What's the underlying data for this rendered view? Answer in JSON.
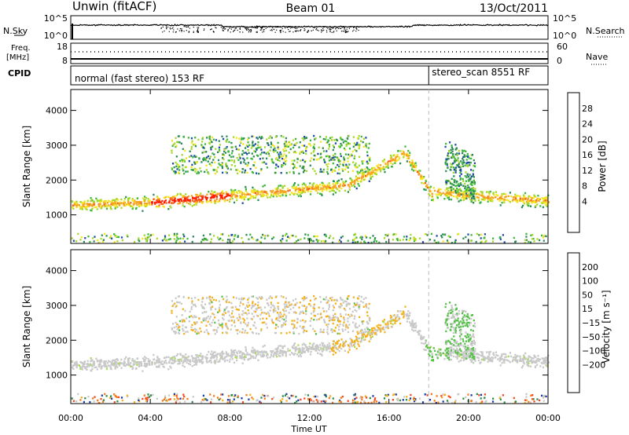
{
  "header": {
    "station": "Unwin (fitACF)",
    "beam": "Beam 01",
    "date": "13/Oct/2011"
  },
  "noise_panel": {
    "left_label": "N.Sky",
    "right_label": "N.Search",
    "ticks_left": [
      "10^5",
      "10^0"
    ],
    "ticks_right": [
      "10^5",
      "10^0"
    ]
  },
  "freq_panel": {
    "left_label": "Freq.",
    "left_unit": "[MHz]",
    "right_label": "Nave",
    "ticks_left": [
      "18",
      "8"
    ],
    "ticks_right": [
      "60",
      "0"
    ]
  },
  "cpid_panel": {
    "label": "CPID",
    "segments": [
      {
        "text": "normal (fast stereo) 153 RF",
        "start_hour": 0
      },
      {
        "text": "stereo_scan 8551 RF",
        "start_hour": 18.0
      }
    ]
  },
  "chart_data": [
    {
      "type": "heatmap",
      "name": "power",
      "xlabel": "",
      "ylabel": "Slant Range [km]",
      "xlim": [
        0,
        24
      ],
      "ylim": [
        180,
        4600
      ],
      "yticks": [
        1000,
        2000,
        3000,
        4000
      ],
      "colorbar": {
        "label": "Power [dB]",
        "ticks": [
          "4",
          "8",
          "12",
          "16",
          "20",
          "24",
          "28"
        ],
        "colors": [
          "#1414ff",
          "#1f4aa8",
          "#2d8a57",
          "#3db83d",
          "#a6d82a",
          "#f5e51e",
          "#f5a41e",
          "#f5641e",
          "#ff1e00"
        ]
      }
    },
    {
      "type": "heatmap",
      "name": "velocity",
      "xlabel": "Time UT",
      "ylabel": "Slant Range [km]",
      "xlim": [
        0,
        24
      ],
      "ylim": [
        180,
        4600
      ],
      "yticks": [
        1000,
        2000,
        3000,
        4000
      ],
      "xticks": [
        "00:00",
        "04:00",
        "08:00",
        "12:00",
        "16:00",
        "20:00",
        "00:00"
      ],
      "colorbar": {
        "label": "Velocity [m s⁻¹]",
        "ticks": [
          "200",
          "100",
          "50",
          "15",
          "−15",
          "−50",
          "−100",
          "−200"
        ],
        "colors": [
          "#1a3aa8",
          "#1f6fb0",
          "#2c8a4c",
          "#57c04b",
          "#a9dd4f",
          "#c9c9c9",
          "#f5b01e",
          "#f57a1e",
          "#f54a1e",
          "#ff1010"
        ]
      }
    }
  ]
}
